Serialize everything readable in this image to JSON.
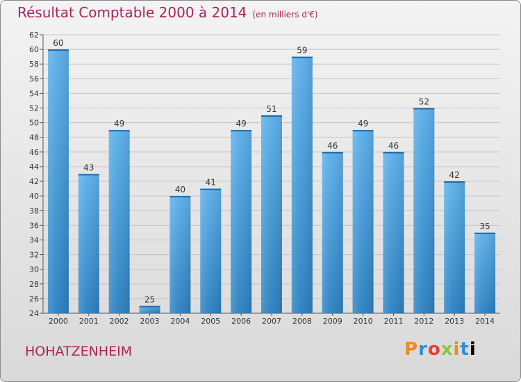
{
  "header": {
    "title": "Résultat Comptable 2000 à 2014",
    "subtitle": "(en milliers d'€)"
  },
  "footer": {
    "commune": "HOHATZENHEIM",
    "brand": "Proxiti"
  },
  "colors": {
    "title": "#a8245a",
    "bar_top": "#5aaee8",
    "bar_bottom": "#2a7fc0"
  },
  "chart_data": {
    "type": "bar",
    "title": "Résultat Comptable 2000 à 2014",
    "subtitle": "(en milliers d'€)",
    "xlabel": "",
    "ylabel": "",
    "categories": [
      "2000",
      "2001",
      "2002",
      "2003",
      "2004",
      "2005",
      "2006",
      "2007",
      "2008",
      "2009",
      "2010",
      "2011",
      "2012",
      "2013",
      "2014"
    ],
    "values": [
      60,
      43,
      49,
      25,
      40,
      41,
      49,
      51,
      59,
      46,
      49,
      46,
      52,
      42,
      35
    ],
    "ylim": [
      24,
      62
    ],
    "yticks": [
      24,
      26,
      28,
      30,
      32,
      34,
      36,
      38,
      40,
      42,
      44,
      46,
      48,
      50,
      52,
      54,
      56,
      58,
      60,
      62
    ],
    "grid": true,
    "data_labels": true
  }
}
